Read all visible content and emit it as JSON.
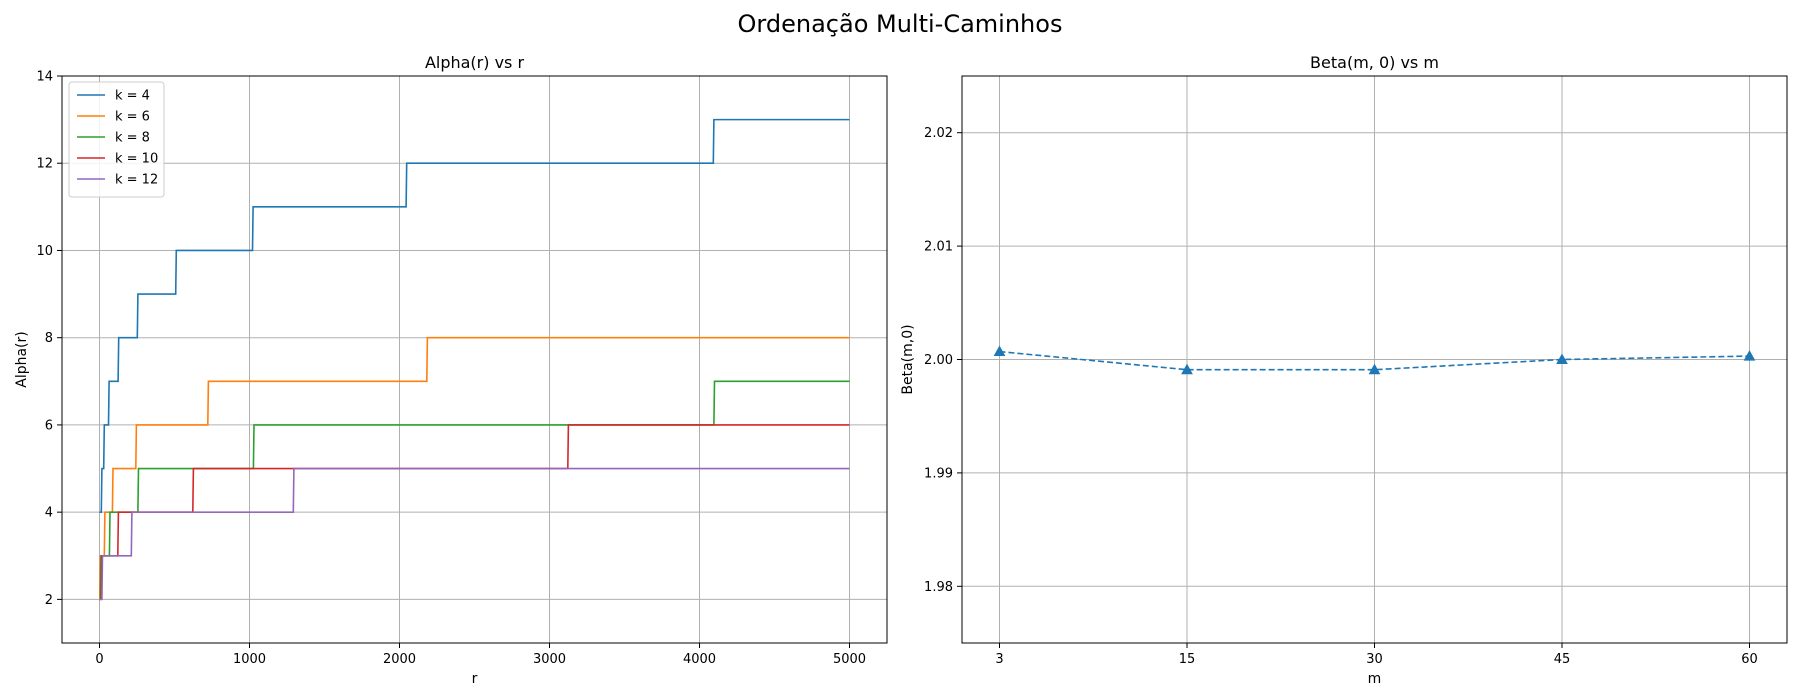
{
  "figure": {
    "title": "Ordenação Multi-Caminhos"
  },
  "chart_data": [
    {
      "type": "line",
      "title": "Alpha(r) vs r",
      "xlabel": "r",
      "ylabel": "Alpha(r)",
      "xlim": [
        -250,
        5250
      ],
      "ylim": [
        1,
        14
      ],
      "xticks": [
        0,
        1000,
        2000,
        3000,
        4000,
        5000
      ],
      "xtick_labels": [
        "0",
        "1000",
        "2000",
        "3000",
        "4000",
        "5000"
      ],
      "yticks": [
        2,
        4,
        6,
        8,
        10,
        12,
        14
      ],
      "ytick_labels": [
        "2",
        "4",
        "6",
        "8",
        "10",
        "12",
        "14"
      ],
      "grid": true,
      "legend": "upper-left",
      "series": [
        {
          "name": "k = 4",
          "color": "#1f77b4",
          "x": [
            0,
            16,
            32,
            64,
            128,
            256,
            512,
            1024,
            2048,
            4096,
            5000
          ],
          "y": [
            4,
            5,
            6,
            7,
            8,
            9,
            10,
            11,
            12,
            13,
            13
          ]
        },
        {
          "name": "k = 6",
          "color": "#ff7f0e",
          "x": [
            0,
            6,
            36,
            90,
            246,
            726,
            2186,
            5000
          ],
          "y": [
            2,
            3,
            4,
            5,
            6,
            7,
            8,
            8
          ]
        },
        {
          "name": "k = 8",
          "color": "#2ca02c",
          "x": [
            0,
            10,
            70,
            260,
            1030,
            4100,
            5000
          ],
          "y": [
            2,
            3,
            4,
            5,
            6,
            7,
            7
          ]
        },
        {
          "name": "k = 10",
          "color": "#d62728",
          "x": [
            0,
            15,
            126,
            626,
            3126,
            5000
          ],
          "y": [
            2,
            3,
            4,
            5,
            6,
            6
          ]
        },
        {
          "name": "k = 12",
          "color": "#9467bd",
          "x": [
            0,
            20,
            216,
            1296,
            5000
          ],
          "y": [
            2,
            3,
            4,
            5,
            5
          ]
        }
      ]
    },
    {
      "type": "line",
      "title": "Beta(m, 0) vs m",
      "xlabel": "m",
      "ylabel": "Beta(m,0)",
      "categories": [
        "3",
        "15",
        "30",
        "45",
        "60"
      ],
      "ylim": [
        1.975,
        2.025
      ],
      "yticks": [
        1.98,
        1.99,
        2.0,
        2.01,
        2.02
      ],
      "ytick_labels": [
        "1.98",
        "1.99",
        "2.00",
        "2.01",
        "2.02"
      ],
      "grid": true,
      "series": [
        {
          "color": "#1f77b4",
          "linestyle": "dashed",
          "marker": "triangle",
          "values": [
            2.0007,
            1.9991,
            1.9991,
            2.0,
            2.0003
          ]
        }
      ]
    }
  ]
}
